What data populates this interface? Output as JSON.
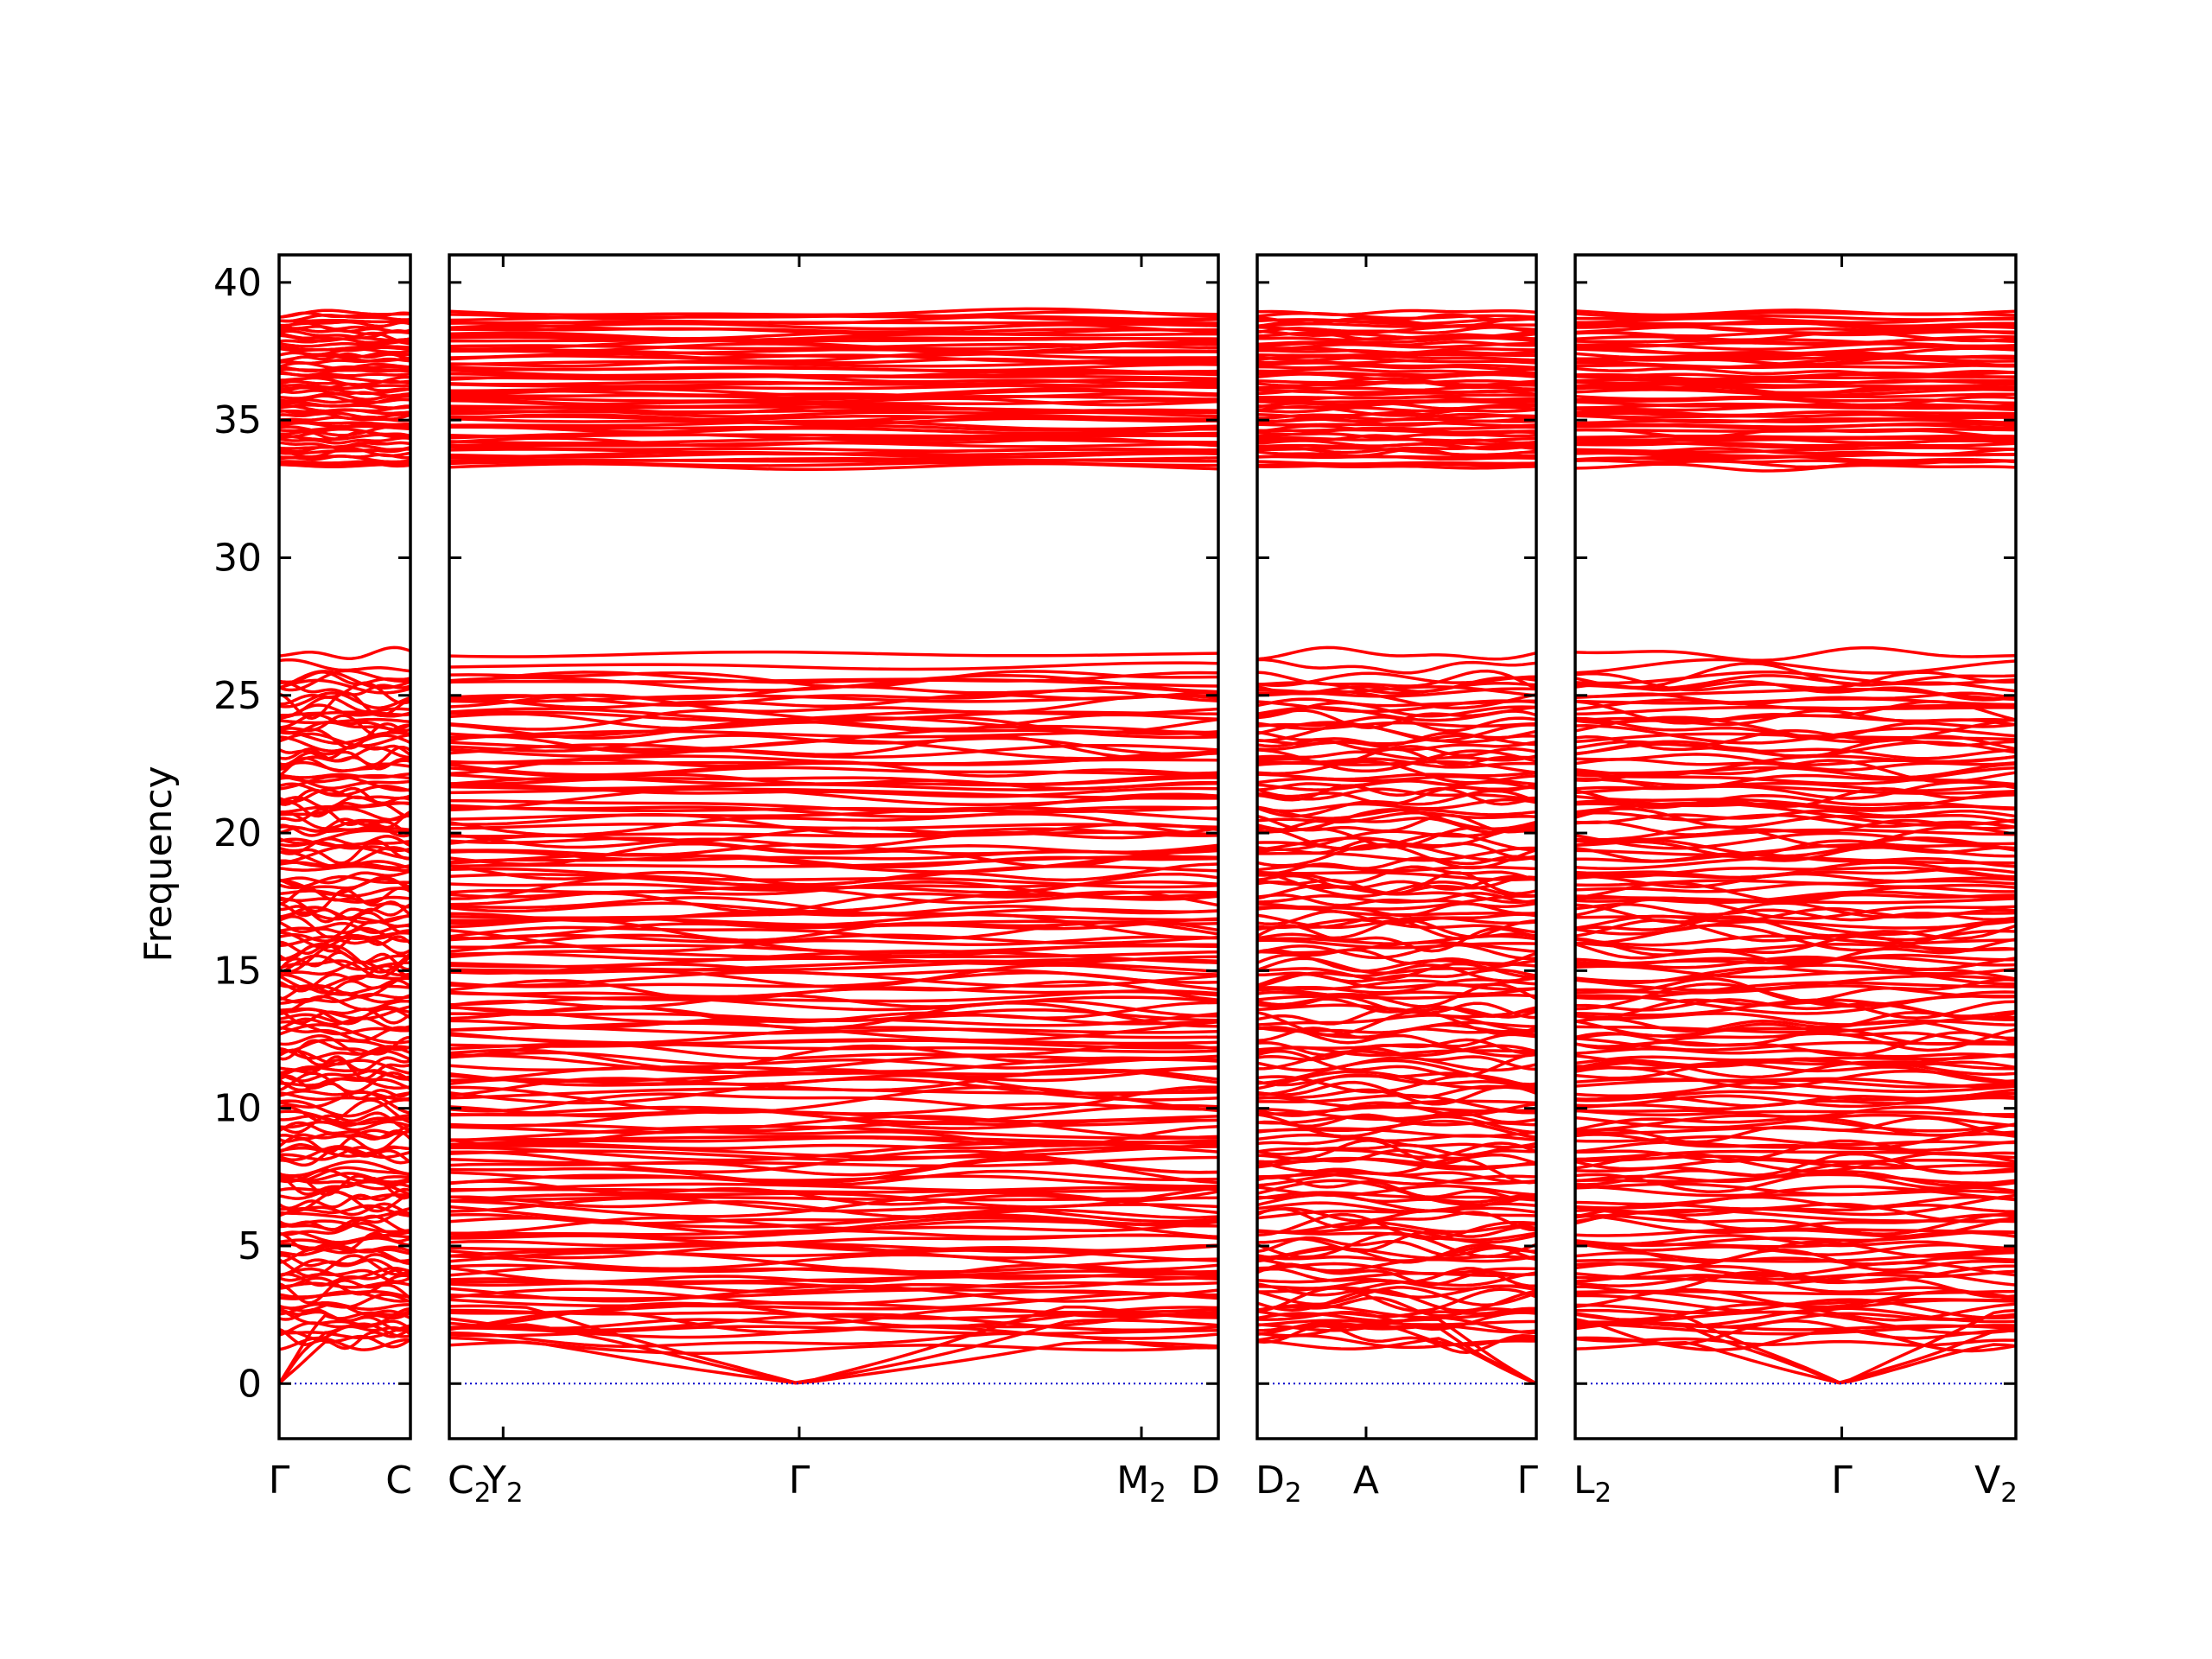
{
  "chart_data": {
    "type": "line",
    "title": "",
    "ylabel": "Frequency",
    "ylim": [
      -2,
      41
    ],
    "yticks": [
      0,
      5,
      10,
      15,
      20,
      25,
      30,
      35,
      40
    ],
    "grid": false,
    "colors": {
      "bands": "#ff0000",
      "zero_line": "#0000cc",
      "frame": "#000000"
    },
    "band_summary": {
      "acoustic_max_at_gamma": 0,
      "lower_manifold_range": [
        0,
        26.6
      ],
      "gap_range": [
        26.6,
        33.2
      ],
      "upper_manifold_range": [
        33.2,
        39.0
      ]
    },
    "panels": [
      {
        "id": "p1",
        "points": [
          {
            "label": "Γ",
            "sub": "",
            "pos": 0
          },
          {
            "label": "C",
            "sub": "",
            "pos": 1
          }
        ]
      },
      {
        "id": "p2",
        "points": [
          {
            "label": "C",
            "sub": "2",
            "pos": 0
          },
          {
            "label": "Y",
            "sub": "2",
            "pos": 0.07
          },
          {
            "label": "Γ",
            "sub": "",
            "pos": 0.455
          },
          {
            "label": "M",
            "sub": "2",
            "pos": 0.9
          },
          {
            "label": "D",
            "sub": "",
            "pos": 1
          }
        ]
      },
      {
        "id": "p3",
        "points": [
          {
            "label": "D",
            "sub": "2",
            "pos": 0
          },
          {
            "label": "A",
            "sub": "",
            "pos": 0.39
          },
          {
            "label": "Γ",
            "sub": "",
            "pos": 1
          }
        ]
      },
      {
        "id": "p4",
        "points": [
          {
            "label": "L",
            "sub": "2",
            "pos": 0
          },
          {
            "label": "Γ",
            "sub": "",
            "pos": 0.605
          },
          {
            "label": "V",
            "sub": "2",
            "pos": 1
          }
        ]
      }
    ]
  }
}
